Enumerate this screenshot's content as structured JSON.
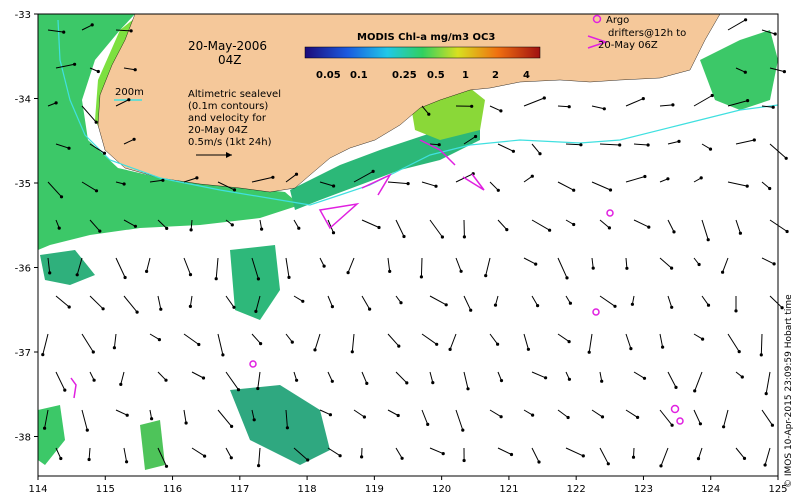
{
  "map": {
    "date_line": "20-May-2006",
    "time_line": "04Z",
    "isobath_label": "200m",
    "sealevel_lines": [
      "Altimetric sealevel",
      "(0.1m contours)",
      "and velocity for",
      "20-May 04Z",
      "0.5m/s (1kt 24h)"
    ],
    "colorbar_title": "MODIS Chl-a mg/m3 OC3",
    "colorbar_ticks": [
      "0.05",
      "0.1",
      "0.25",
      "0.5",
      "1",
      "2",
      "4"
    ],
    "legend_argo": "Argo",
    "legend_drifter_lines": [
      "drifters@12h to",
      "20-May 06Z"
    ],
    "credit": "© IMOS 10-Apr-2015 23:09:59 Hobart time",
    "lon_ticks": [
      "114",
      "115",
      "116",
      "117",
      "118",
      "119",
      "120",
      "121",
      "122",
      "123",
      "124",
      "125"
    ],
    "lat_ticks": [
      "-33",
      "-34",
      "-35",
      "-36",
      "-37",
      "-38"
    ],
    "colors": {
      "land": "#f5c89a",
      "argo": "#e020e0",
      "isobath": "#40e0e0",
      "arrow": "#000000"
    }
  }
}
